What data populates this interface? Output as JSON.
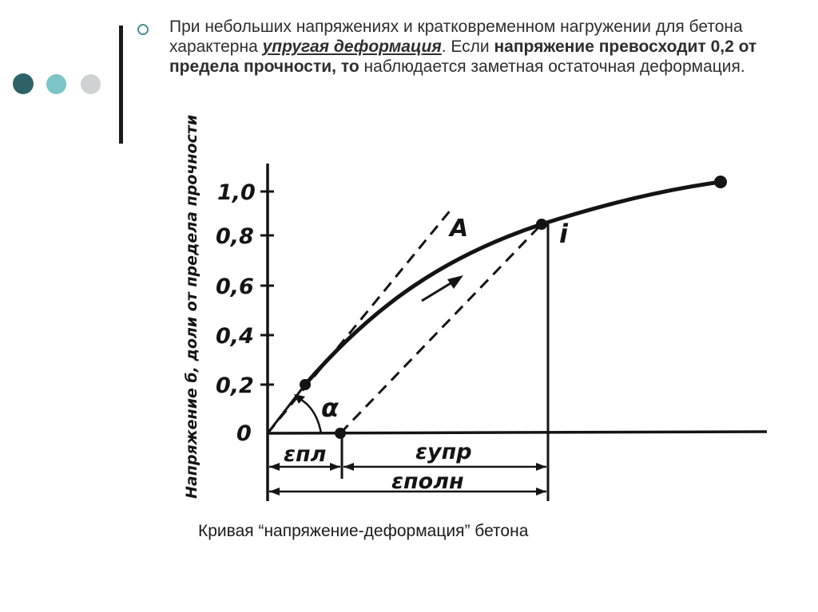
{
  "slide": {
    "bullet": {
      "text_1": "При небольших напряжениях и кратковременном нагружении для бетона характерна ",
      "emphasis": "упругая деформация",
      "text_2": ". Если ",
      "text_bold": "напряжение превосходит 0,2 от предела прочности, то",
      "text_3": " наблюдается заметная остаточная деформация."
    },
    "caption": "Кривая “напряжение-деформация” бетона",
    "colors": {
      "dot_dark": "#2f6266",
      "dot_mid": "#7cc4c6",
      "dot_light": "#cfd2d2",
      "bullet": "#4e8f93"
    }
  },
  "diagram": {
    "y_axis_label": "Напряжение б, доли от предела прочности",
    "y_ticks": [
      "1,0",
      "0,8",
      "0,6",
      "0,4",
      "0,2",
      "0"
    ],
    "labels": {
      "line_a": "A",
      "point_i": "i",
      "angle": "α",
      "eps_pl": "εпл",
      "eps_upr": "εупр",
      "eps_poln": "εполн"
    }
  }
}
